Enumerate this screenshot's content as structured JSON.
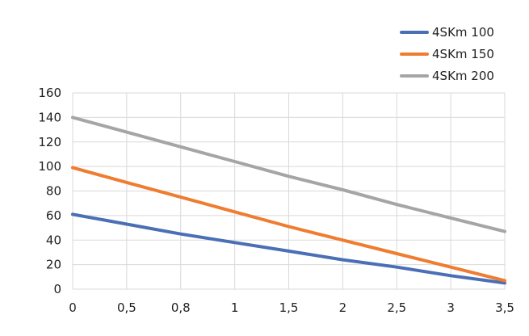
{
  "chart_data": {
    "type": "line",
    "categories": [
      "0",
      "0,5",
      "0,8",
      "1",
      "1,5",
      "2",
      "2,5",
      "3",
      "3,5"
    ],
    "series": [
      {
        "name": "4SKm 100",
        "color": "#4a6fb5",
        "values": [
          61,
          53,
          45,
          38,
          31,
          24,
          18,
          11,
          5
        ]
      },
      {
        "name": "4SKm 150",
        "color": "#ee7d31",
        "values": [
          99,
          87,
          75,
          63,
          51,
          40,
          29,
          18,
          7
        ]
      },
      {
        "name": "4SKm 200",
        "color": "#a5a5a5",
        "values": [
          140,
          128,
          116,
          104,
          92,
          81,
          69,
          58,
          47
        ]
      }
    ],
    "ylim": [
      0,
      160
    ],
    "yticks": [
      "0",
      "20",
      "40",
      "60",
      "80",
      "100",
      "120",
      "140",
      "160"
    ],
    "grid": true,
    "legend_position": "top-right",
    "title": "",
    "xlabel": "",
    "ylabel": ""
  }
}
